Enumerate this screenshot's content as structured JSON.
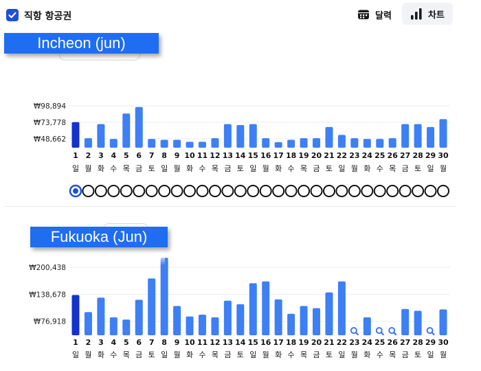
{
  "filter": {
    "label": "직항 항공권",
    "checked": true
  },
  "view_toggle": {
    "calendar_label": "달력",
    "chart_label": "차트",
    "active": "chart"
  },
  "colors": {
    "bar": "#3d7ff5",
    "bar_selected": "#1433cc",
    "accent": "#1f4fd8"
  },
  "chart_data": [
    {
      "type": "bar",
      "title": "Incheon (jun)",
      "currency": "₩",
      "yticks": [
        "₩98,894",
        "₩73,778",
        "₩48,662"
      ],
      "ytick_values": [
        98894,
        73778,
        48662
      ],
      "days": [
        "1",
        "2",
        "3",
        "4",
        "5",
        "6",
        "7",
        "8",
        "9",
        "10",
        "11",
        "12",
        "13",
        "14",
        "15",
        "16",
        "17",
        "18",
        "19",
        "20",
        "21",
        "22",
        "23",
        "24",
        "25",
        "26",
        "27",
        "28",
        "29",
        "30"
      ],
      "weekdays": [
        "일",
        "월",
        "화",
        "수",
        "목",
        "금",
        "토",
        "일",
        "월",
        "화",
        "수",
        "목",
        "금",
        "토",
        "일",
        "월",
        "화",
        "수",
        "목",
        "금",
        "토",
        "일",
        "월",
        "화",
        "수",
        "목",
        "금",
        "토",
        "일",
        "월"
      ],
      "values": [
        74000,
        49500,
        71000,
        48300,
        87000,
        97000,
        48300,
        47000,
        47000,
        44000,
        44000,
        49500,
        71000,
        69500,
        71000,
        49500,
        43500,
        47000,
        49500,
        49500,
        66500,
        54500,
        49500,
        48300,
        48300,
        49500,
        71000,
        71000,
        66500,
        78500
      ],
      "selected_index": 0,
      "missing": [],
      "selector_dots": 30,
      "selected_dot": 0
    },
    {
      "type": "bar",
      "title": "Fukuoka (Jun)",
      "currency": "₩",
      "yticks": [
        "₩200,438",
        "₩138,678",
        "₩76,918"
      ],
      "ytick_values": [
        200438,
        138678,
        76918
      ],
      "days": [
        "1",
        "2",
        "3",
        "4",
        "5",
        "6",
        "7",
        "8",
        "9",
        "10",
        "11",
        "12",
        "13",
        "14",
        "15",
        "16",
        "17",
        "18",
        "19",
        "20",
        "21",
        "22",
        "23",
        "24",
        "25",
        "26",
        "27",
        "28",
        "29",
        "30"
      ],
      "weekdays": [
        "일",
        "월",
        "화",
        "수",
        "목",
        "금",
        "토",
        "일",
        "월",
        "화",
        "수",
        "목",
        "금",
        "토",
        "일",
        "월",
        "화",
        "수",
        "목",
        "금",
        "토",
        "일",
        "월",
        "화",
        "수",
        "목",
        "금",
        "토",
        "일",
        "월"
      ],
      "values": [
        137000,
        98000,
        131000,
        86000,
        81000,
        126000,
        175000,
        222000,
        112000,
        88000,
        92000,
        86000,
        124000,
        116000,
        164000,
        168000,
        127000,
        94000,
        112000,
        107000,
        143000,
        168000,
        null,
        86000,
        null,
        null,
        105000,
        101000,
        null,
        104000
      ],
      "selected_index": 0,
      "missing": [
        22,
        24,
        25,
        28
      ]
    }
  ]
}
